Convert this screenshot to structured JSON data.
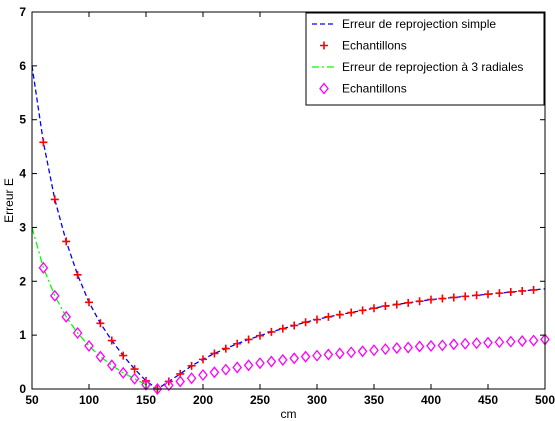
{
  "chart_data": {
    "type": "line",
    "xlabel": "cm",
    "ylabel": "Erreur E",
    "xlim": [
      50,
      500
    ],
    "ylim": [
      0,
      7
    ],
    "xticks": [
      50,
      100,
      150,
      200,
      250,
      300,
      350,
      400,
      450,
      500
    ],
    "yticks": [
      0,
      1,
      2,
      3,
      4,
      5,
      6,
      7
    ],
    "grid": false,
    "legend_position": "top-right",
    "series": [
      {
        "name": "Erreur de reprojection simple",
        "style": "dashed-line",
        "color": "#0000ff",
        "x": [
          50,
          60,
          70,
          80,
          90,
          100,
          110,
          120,
          130,
          140,
          150,
          160,
          170,
          180,
          190,
          200,
          210,
          220,
          230,
          240,
          250,
          260,
          270,
          280,
          290,
          300,
          310,
          320,
          330,
          340,
          350,
          360,
          370,
          380,
          390,
          400,
          410,
          420,
          430,
          440,
          450,
          460,
          470,
          480,
          490,
          500
        ],
        "y": [
          6.0,
          4.58,
          3.52,
          2.74,
          2.12,
          1.61,
          1.22,
          0.9,
          0.62,
          0.37,
          0.15,
          0.0,
          0.14,
          0.28,
          0.43,
          0.55,
          0.66,
          0.75,
          0.84,
          0.92,
          0.99,
          1.06,
          1.12,
          1.18,
          1.24,
          1.29,
          1.34,
          1.38,
          1.42,
          1.46,
          1.5,
          1.54,
          1.57,
          1.6,
          1.63,
          1.66,
          1.68,
          1.7,
          1.72,
          1.74,
          1.76,
          1.78,
          1.8,
          1.82,
          1.84,
          1.86
        ]
      },
      {
        "name": "Echantillons",
        "style": "plus-markers",
        "color": "#ff0000",
        "x": [
          60,
          70,
          80,
          90,
          100,
          110,
          120,
          130,
          140,
          150,
          160,
          170,
          180,
          190,
          200,
          210,
          220,
          230,
          240,
          250,
          260,
          270,
          280,
          290,
          300,
          310,
          320,
          330,
          340,
          350,
          360,
          370,
          380,
          390,
          400,
          410,
          420,
          430,
          440,
          450,
          460,
          470,
          480,
          490
        ],
        "y": [
          4.58,
          3.52,
          2.74,
          2.12,
          1.61,
          1.22,
          0.9,
          0.62,
          0.37,
          0.15,
          0.0,
          0.14,
          0.28,
          0.43,
          0.55,
          0.66,
          0.75,
          0.84,
          0.92,
          0.99,
          1.06,
          1.12,
          1.18,
          1.24,
          1.29,
          1.34,
          1.38,
          1.42,
          1.46,
          1.5,
          1.54,
          1.57,
          1.6,
          1.63,
          1.66,
          1.68,
          1.7,
          1.72,
          1.74,
          1.76,
          1.78,
          1.8,
          1.82,
          1.84
        ]
      },
      {
        "name": "Erreur de reprojection à 3 radiales",
        "style": "dashdot-line",
        "color": "#00ff00",
        "x": [
          50,
          60,
          70,
          80,
          90,
          100,
          110,
          120,
          130,
          140,
          150,
          160
        ],
        "y": [
          3.0,
          2.25,
          1.73,
          1.34,
          1.04,
          0.8,
          0.6,
          0.44,
          0.3,
          0.19,
          0.08,
          0.0
        ]
      },
      {
        "name": "Echantillons",
        "style": "diamond-markers",
        "color": "#ff00ff",
        "x": [
          60,
          70,
          80,
          90,
          100,
          110,
          120,
          130,
          140,
          150,
          160,
          170,
          180,
          190,
          200,
          210,
          220,
          230,
          240,
          250,
          260,
          270,
          280,
          290,
          300,
          310,
          320,
          330,
          340,
          350,
          360,
          370,
          380,
          390,
          400,
          410,
          420,
          430,
          440,
          450,
          460,
          470,
          480,
          490,
          500
        ],
        "y": [
          2.25,
          1.73,
          1.34,
          1.04,
          0.8,
          0.6,
          0.44,
          0.3,
          0.19,
          0.08,
          0.0,
          0.07,
          0.14,
          0.2,
          0.26,
          0.31,
          0.36,
          0.4,
          0.44,
          0.48,
          0.51,
          0.54,
          0.57,
          0.6,
          0.62,
          0.64,
          0.66,
          0.68,
          0.7,
          0.72,
          0.74,
          0.76,
          0.77,
          0.79,
          0.8,
          0.81,
          0.83,
          0.84,
          0.85,
          0.86,
          0.87,
          0.88,
          0.89,
          0.9,
          0.92
        ]
      }
    ]
  }
}
